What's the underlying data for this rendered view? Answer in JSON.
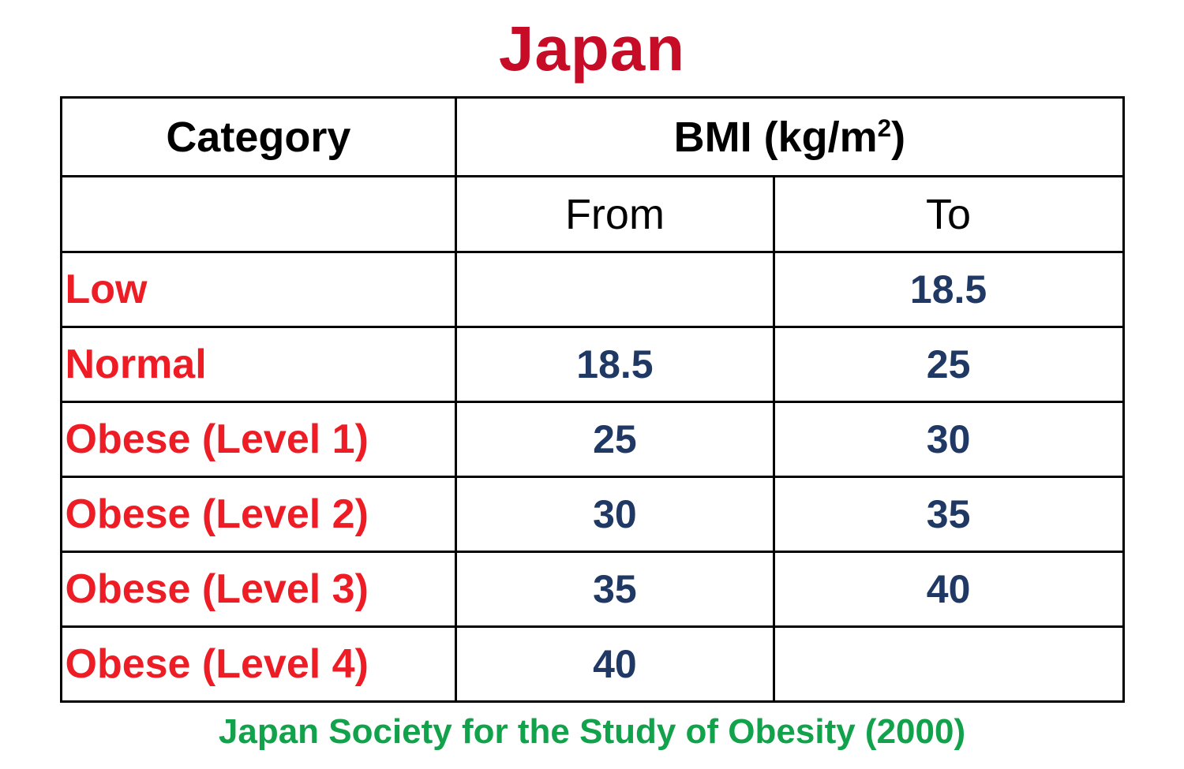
{
  "title": "Japan",
  "source": "Japan Society for the Study of Obesity (2000)",
  "colors": {
    "title": "#C60C26",
    "category": "#EE1C25",
    "value": "#1F3864",
    "source": "#12A24B",
    "border": "#000000",
    "header-text": "#000000",
    "background": "#FFFFFF"
  },
  "table": {
    "header": {
      "category": "Category",
      "bmi_prefix": "BMI (kg/m",
      "bmi_sup": "2",
      "bmi_suffix": ")",
      "from": "From",
      "to": "To"
    },
    "rows": [
      {
        "category": "Low",
        "from": "",
        "to": "18.5"
      },
      {
        "category": "Normal",
        "from": "18.5",
        "to": "25"
      },
      {
        "category": "Obese (Level 1)",
        "from": "25",
        "to": "30"
      },
      {
        "category": "Obese (Level 2)",
        "from": "30",
        "to": "35"
      },
      {
        "category": "Obese (Level 3)",
        "from": "35",
        "to": "40"
      },
      {
        "category": "Obese (Level 4)",
        "from": "40",
        "to": ""
      }
    ]
  }
}
